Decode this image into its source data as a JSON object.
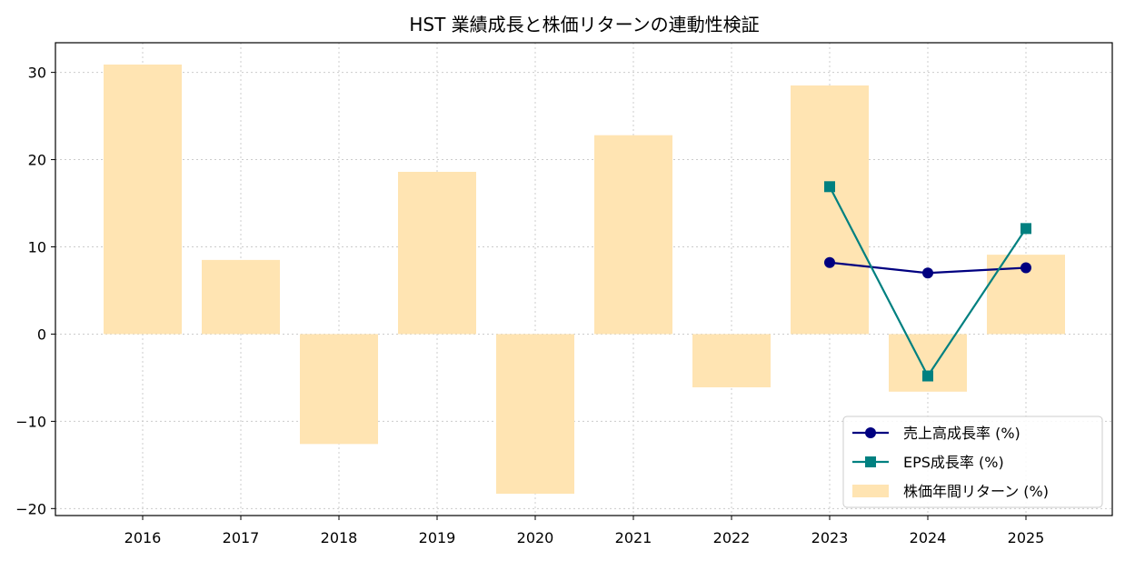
{
  "chart_data": {
    "type": "bar+line",
    "title": "HST 業績成長と株価リターンの連動性検証",
    "xlabel": "",
    "ylabel": "",
    "categories": [
      "2016",
      "2017",
      "2018",
      "2019",
      "2020",
      "2021",
      "2022",
      "2023",
      "2024",
      "2025"
    ],
    "ylim": [
      -20.8,
      33.4
    ],
    "yticks": [
      -20,
      -10,
      0,
      10,
      20,
      30
    ],
    "grid": true,
    "legend_position": "bottom-right",
    "bars": {
      "name": "株価年間リターン (%)",
      "color": "#ffe4b2",
      "values": [
        30.9,
        8.5,
        -12.6,
        18.6,
        -18.3,
        22.8,
        -6.1,
        28.5,
        -6.6,
        9.1
      ]
    },
    "series": [
      {
        "name": "売上高成長率 (%)",
        "color": "#000080",
        "marker": "circle",
        "values": [
          null,
          null,
          null,
          null,
          null,
          null,
          null,
          8.2,
          7.0,
          7.6
        ]
      },
      {
        "name": "EPS成長率 (%)",
        "color": "#008080",
        "marker": "square",
        "values": [
          null,
          null,
          null,
          null,
          null,
          null,
          null,
          16.9,
          -4.8,
          12.1
        ]
      }
    ]
  }
}
